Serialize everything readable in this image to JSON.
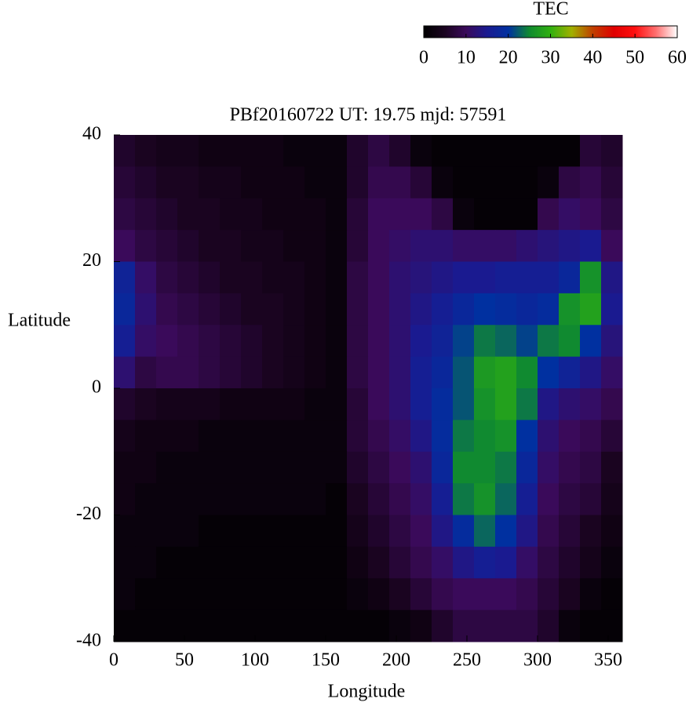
{
  "chart_data": {
    "type": "heatmap",
    "title": "PBf20160722  UT: 19.75  mjd: 57591",
    "xlabel": "Longitude",
    "ylabel": "Latitude",
    "xlim": [
      0,
      360
    ],
    "xticks": [
      0,
      50,
      100,
      150,
      200,
      250,
      300,
      350
    ],
    "ylim": [
      -40,
      40
    ],
    "yticks": [
      -40,
      -20,
      0,
      20,
      40
    ],
    "x": [
      7.5,
      22.5,
      37.5,
      52.5,
      67.5,
      82.5,
      97.5,
      112.5,
      127.5,
      142.5,
      157.5,
      172.5,
      187.5,
      202.5,
      217.5,
      232.5,
      247.5,
      262.5,
      277.5,
      292.5,
      307.5,
      322.5,
      337.5,
      352.5
    ],
    "y": [
      37.5,
      32.5,
      27.5,
      22.5,
      17.5,
      12.5,
      7.5,
      2.5,
      -2.5,
      -7.5,
      -12.5,
      -17.5,
      -22.5,
      -27.5,
      -32.5,
      -37.5
    ],
    "values": [
      [
        6,
        5,
        4,
        4,
        3,
        3,
        3,
        3,
        2,
        2,
        2,
        6,
        8,
        6,
        2,
        1,
        1,
        1,
        1,
        1,
        1,
        1,
        7,
        6
      ],
      [
        7,
        6,
        5,
        5,
        4,
        4,
        3,
        3,
        3,
        2,
        2,
        6,
        9,
        9,
        7,
        2,
        1,
        1,
        1,
        1,
        2,
        8,
        9,
        7
      ],
      [
        8,
        7,
        6,
        5,
        5,
        4,
        4,
        3,
        3,
        3,
        2,
        7,
        10,
        10,
        10,
        8,
        2,
        1,
        1,
        1,
        9,
        11,
        10,
        8
      ],
      [
        10,
        8,
        7,
        6,
        5,
        5,
        4,
        4,
        3,
        3,
        2,
        7,
        10,
        11,
        12,
        12,
        11,
        11,
        11,
        12,
        13,
        14,
        15,
        10
      ],
      [
        17,
        11,
        8,
        7,
        6,
        5,
        5,
        4,
        4,
        3,
        2,
        8,
        10,
        12,
        13,
        14,
        15,
        15,
        16,
        16,
        16,
        18,
        26,
        14
      ],
      [
        18,
        12,
        9,
        8,
        7,
        6,
        5,
        5,
        4,
        3,
        2,
        8,
        10,
        12,
        14,
        16,
        18,
        20,
        19,
        18,
        19,
        26,
        28,
        15
      ],
      [
        16,
        11,
        10,
        9,
        8,
        7,
        6,
        5,
        4,
        3,
        2,
        8,
        10,
        12,
        15,
        17,
        21,
        24,
        23,
        21,
        24,
        25,
        20,
        13
      ],
      [
        12,
        8,
        9,
        9,
        8,
        7,
        6,
        5,
        4,
        3,
        2,
        8,
        10,
        12,
        16,
        18,
        22,
        27,
        28,
        25,
        20,
        17,
        14,
        11
      ],
      [
        6,
        5,
        4,
        4,
        4,
        3,
        3,
        3,
        3,
        2,
        2,
        7,
        10,
        12,
        16,
        19,
        22,
        26,
        28,
        24,
        14,
        12,
        11,
        9
      ],
      [
        4,
        3,
        3,
        3,
        2,
        2,
        2,
        2,
        2,
        2,
        2,
        7,
        9,
        11,
        14,
        19,
        24,
        25,
        26,
        20,
        12,
        10,
        9,
        7
      ],
      [
        3,
        3,
        2,
        2,
        2,
        2,
        2,
        2,
        2,
        2,
        2,
        6,
        8,
        10,
        12,
        18,
        25,
        25,
        24,
        18,
        11,
        9,
        8,
        5
      ],
      [
        3,
        2,
        2,
        2,
        2,
        2,
        2,
        2,
        2,
        2,
        1,
        5,
        7,
        9,
        11,
        16,
        24,
        26,
        23,
        16,
        10,
        8,
        7,
        4
      ],
      [
        2,
        2,
        2,
        2,
        1,
        1,
        1,
        1,
        1,
        1,
        1,
        4,
        6,
        8,
        10,
        14,
        19,
        23,
        20,
        14,
        9,
        7,
        5,
        3
      ],
      [
        2,
        2,
        1,
        1,
        1,
        1,
        1,
        1,
        1,
        1,
        1,
        3,
        5,
        7,
        9,
        11,
        14,
        16,
        15,
        11,
        8,
        6,
        4,
        2
      ],
      [
        2,
        1,
        1,
        1,
        1,
        1,
        1,
        1,
        1,
        1,
        1,
        2,
        3,
        5,
        7,
        9,
        10,
        10,
        10,
        9,
        7,
        5,
        2,
        1
      ],
      [
        1,
        1,
        1,
        1,
        1,
        1,
        1,
        1,
        1,
        1,
        1,
        1,
        1,
        2,
        3,
        6,
        8,
        8,
        8,
        8,
        6,
        2,
        1,
        1
      ]
    ],
    "colorbar": {
      "label": "TEC",
      "lim": [
        0,
        60
      ],
      "ticks": [
        0,
        10,
        20,
        30,
        40,
        50,
        60
      ]
    },
    "colormap": [
      "#000000",
      "#1a0420",
      "#3a0a5a",
      "#1a1a90",
      "#0030a0",
      "#108a30",
      "#30b010",
      "#a0b000",
      "#c04000",
      "#e00000",
      "#ff1010",
      "#ff7070",
      "#ffffff"
    ]
  }
}
